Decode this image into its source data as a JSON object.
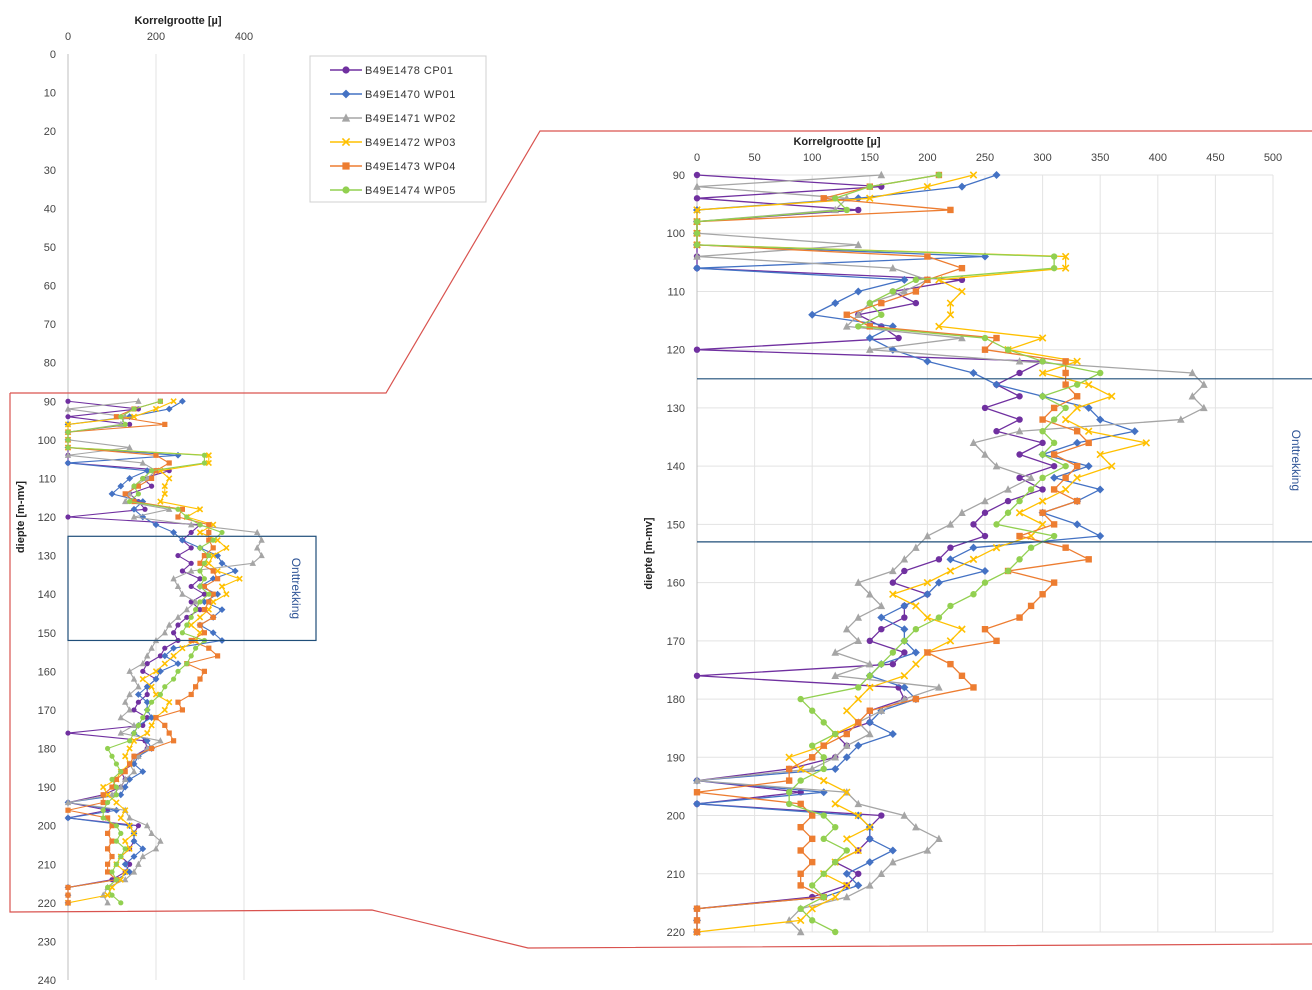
{
  "chart_data": [
    {
      "type": "line",
      "xlabel": "Korrelgrootte [µ]",
      "ylabel": "diepte [m-mv]",
      "xlim": [
        0,
        500
      ],
      "ylim": [
        0,
        240
      ],
      "y_inverted": true,
      "x_ticks": [
        "0",
        "200",
        "400"
      ],
      "y_ticks": [
        "0",
        "10",
        "20",
        "30",
        "40",
        "50",
        "60",
        "70",
        "80",
        "90",
        "100",
        "110",
        "120",
        "130",
        "140",
        "150",
        "160",
        "170",
        "180",
        "190",
        "200",
        "210",
        "220",
        "230",
        "240"
      ],
      "grid": "vertical",
      "legend_position": "right",
      "annotation": {
        "text": "Onttrekking",
        "y_from": 125,
        "y_to": 152
      }
    },
    {
      "type": "line",
      "xlabel": "Korrelgrootte [µ]",
      "ylabel": "diepte [m-mv]",
      "xlim": [
        0,
        500
      ],
      "ylim": [
        90,
        220
      ],
      "y_inverted": true,
      "x_ticks": [
        "0",
        "50",
        "100",
        "150",
        "200",
        "250",
        "300",
        "350",
        "400",
        "450",
        "500"
      ],
      "y_ticks": [
        "90",
        "100",
        "110",
        "120",
        "130",
        "140",
        "150",
        "160",
        "170",
        "180",
        "190",
        "200",
        "210",
        "220"
      ],
      "grid": "both",
      "annotation": {
        "text": "Onttrekking",
        "y_from": 125,
        "y_to": 153
      }
    }
  ],
  "series": [
    {
      "name": "B49E1478 CP01",
      "color": "#7030a0",
      "marker": "circle",
      "y": [
        90,
        92,
        94,
        96,
        98,
        100,
        102,
        104,
        106,
        108,
        110,
        112,
        114,
        116,
        118,
        120,
        122,
        124,
        126,
        128,
        130,
        132,
        134,
        136,
        138,
        140,
        142,
        144,
        146,
        148,
        150,
        152,
        154,
        156,
        158,
        160,
        162,
        164,
        166,
        168,
        170,
        172,
        174,
        176,
        178,
        180,
        182,
        184,
        186,
        188,
        190,
        192,
        194,
        196,
        198,
        200,
        202,
        204,
        206,
        208,
        210,
        212,
        214,
        216,
        218,
        220
      ],
      "x": [
        0,
        160,
        0,
        140,
        0,
        0,
        0,
        0,
        0,
        230,
        170,
        190,
        140,
        160,
        175,
        0,
        300,
        280,
        260,
        280,
        250,
        280,
        260,
        300,
        280,
        310,
        280,
        300,
        270,
        250,
        240,
        250,
        220,
        210,
        180,
        170,
        200,
        180,
        180,
        160,
        150,
        180,
        170,
        0,
        175,
        180,
        150,
        150,
        120,
        130,
        120,
        80,
        0,
        90,
        0,
        160,
        150,
        150,
        140,
        120,
        140,
        130,
        100,
        0,
        0,
        0
      ]
    },
    {
      "name": "B49E1470 WP01",
      "color": "#4472c4",
      "marker": "diamond",
      "y": [
        90,
        92,
        94,
        96,
        98,
        100,
        102,
        104,
        106,
        108,
        110,
        112,
        114,
        116,
        118,
        120,
        122,
        124,
        126,
        128,
        130,
        132,
        134,
        136,
        138,
        140,
        142,
        144,
        146,
        148,
        150,
        152,
        154,
        156,
        158,
        160,
        162,
        164,
        166,
        168,
        170,
        172,
        174,
        176,
        178,
        180,
        182,
        184,
        186,
        188,
        190,
        192,
        194,
        196,
        198,
        200,
        202,
        204,
        206,
        208,
        210,
        212,
        214,
        216,
        218,
        220
      ],
      "x": [
        260,
        230,
        140,
        0,
        0,
        0,
        0,
        250,
        0,
        180,
        140,
        120,
        100,
        170,
        150,
        170,
        200,
        240,
        260,
        300,
        340,
        350,
        380,
        330,
        300,
        340,
        310,
        350,
        330,
        300,
        330,
        350,
        240,
        220,
        250,
        210,
        200,
        180,
        160,
        180,
        180,
        190,
        160,
        150,
        180,
        190,
        160,
        150,
        170,
        140,
        130,
        120,
        0,
        110,
        0,
        140,
        150,
        150,
        170,
        150,
        130,
        140,
        110,
        0,
        0,
        0
      ]
    },
    {
      "name": "B49E1471 WP02",
      "color": "#a5a5a5",
      "marker": "triangle",
      "y": [
        90,
        92,
        94,
        96,
        98,
        100,
        102,
        104,
        106,
        108,
        110,
        112,
        114,
        116,
        118,
        120,
        122,
        124,
        126,
        128,
        130,
        132,
        134,
        136,
        138,
        140,
        142,
        144,
        146,
        148,
        150,
        152,
        154,
        156,
        158,
        160,
        162,
        164,
        166,
        168,
        170,
        172,
        174,
        176,
        178,
        180,
        182,
        184,
        186,
        188,
        190,
        192,
        194,
        196,
        198,
        200,
        202,
        204,
        206,
        208,
        210,
        212,
        214,
        216,
        218,
        220
      ],
      "x": [
        160,
        0,
        130,
        120,
        0,
        0,
        140,
        0,
        170,
        200,
        180,
        150,
        140,
        130,
        230,
        150,
        280,
        430,
        440,
        430,
        440,
        420,
        280,
        240,
        250,
        260,
        290,
        270,
        250,
        230,
        220,
        200,
        190,
        180,
        170,
        140,
        150,
        160,
        140,
        130,
        140,
        120,
        150,
        120,
        210,
        180,
        160,
        140,
        150,
        130,
        120,
        100,
        0,
        130,
        140,
        180,
        190,
        210,
        200,
        170,
        160,
        150,
        130,
        90,
        80,
        90
      ]
    },
    {
      "name": "B49E1472 WP03",
      "color": "#ffc000",
      "marker": "x",
      "y": [
        90,
        92,
        94,
        96,
        98,
        100,
        102,
        104,
        106,
        108,
        110,
        112,
        114,
        116,
        118,
        120,
        122,
        124,
        126,
        128,
        130,
        132,
        134,
        136,
        138,
        140,
        142,
        144,
        146,
        148,
        150,
        152,
        154,
        156,
        158,
        160,
        162,
        164,
        166,
        168,
        170,
        172,
        174,
        176,
        178,
        180,
        182,
        184,
        186,
        188,
        190,
        192,
        194,
        196,
        198,
        200,
        202,
        204,
        206,
        208,
        210,
        212,
        214,
        216,
        218,
        220
      ],
      "x": [
        240,
        200,
        150,
        0,
        0,
        0,
        0,
        320,
        320,
        210,
        230,
        220,
        220,
        210,
        300,
        270,
        330,
        300,
        340,
        360,
        330,
        320,
        340,
        390,
        350,
        360,
        330,
        320,
        300,
        280,
        300,
        290,
        260,
        240,
        220,
        200,
        170,
        190,
        200,
        230,
        220,
        200,
        190,
        180,
        150,
        140,
        130,
        140,
        120,
        110,
        80,
        90,
        110,
        130,
        120,
        140,
        150,
        130,
        140,
        120,
        110,
        130,
        120,
        100,
        90,
        0
      ]
    },
    {
      "name": "B49E1473 WP04",
      "color": "#ed7d31",
      "marker": "square",
      "y": [
        90,
        92,
        94,
        96,
        98,
        100,
        102,
        104,
        106,
        108,
        110,
        112,
        114,
        116,
        118,
        120,
        122,
        124,
        126,
        128,
        130,
        132,
        134,
        136,
        138,
        140,
        142,
        144,
        146,
        148,
        150,
        152,
        154,
        156,
        158,
        160,
        162,
        164,
        166,
        168,
        170,
        172,
        174,
        176,
        178,
        180,
        182,
        184,
        186,
        188,
        190,
        192,
        194,
        196,
        198,
        200,
        202,
        204,
        206,
        208,
        210,
        212,
        214,
        216,
        218,
        220
      ],
      "x": [
        210,
        150,
        110,
        220,
        0,
        0,
        0,
        200,
        230,
        200,
        190,
        160,
        130,
        150,
        260,
        250,
        320,
        320,
        320,
        330,
        310,
        300,
        330,
        340,
        310,
        330,
        320,
        310,
        330,
        300,
        310,
        280,
        320,
        340,
        270,
        310,
        300,
        290,
        280,
        250,
        260,
        200,
        220,
        230,
        240,
        190,
        150,
        140,
        130,
        110,
        100,
        80,
        80,
        0,
        90,
        100,
        90,
        100,
        90,
        100,
        90,
        90,
        110,
        0,
        0,
        0
      ]
    },
    {
      "name": "B49E1474 WP05",
      "color": "#92d050",
      "marker": "circle",
      "y": [
        90,
        92,
        94,
        96,
        98,
        100,
        102,
        104,
        106,
        108,
        110,
        112,
        114,
        116,
        118,
        120,
        122,
        124,
        126,
        128,
        130,
        132,
        134,
        136,
        138,
        140,
        142,
        144,
        146,
        148,
        150,
        152,
        154,
        156,
        158,
        160,
        162,
        164,
        166,
        168,
        170,
        172,
        174,
        176,
        178,
        180,
        182,
        184,
        186,
        188,
        190,
        192,
        194,
        196,
        198,
        200,
        202,
        204,
        206,
        208,
        210,
        212,
        214,
        216,
        218,
        220
      ],
      "x": [
        210,
        150,
        120,
        130,
        0,
        0,
        0,
        310,
        310,
        190,
        170,
        150,
        160,
        140,
        250,
        270,
        300,
        350,
        330,
        300,
        320,
        310,
        300,
        310,
        300,
        320,
        300,
        290,
        280,
        270,
        260,
        310,
        290,
        280,
        270,
        250,
        240,
        220,
        210,
        190,
        180,
        170,
        160,
        150,
        140,
        90,
        100,
        110,
        120,
        100,
        110,
        110,
        90,
        80,
        80,
        110,
        120,
        110,
        130,
        120,
        110,
        100,
        110,
        90,
        100,
        120
      ]
    }
  ]
}
